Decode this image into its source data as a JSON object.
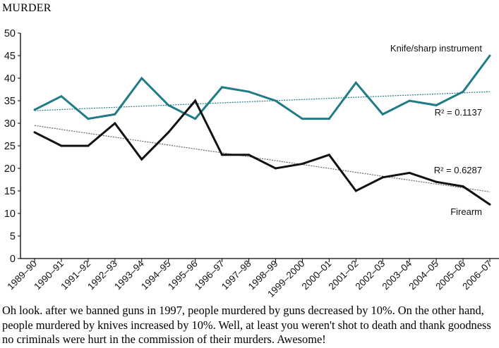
{
  "title": "MURDER",
  "caption": "Oh look. after we banned guns in 1997, people murdered by guns decreased by 10%. On the other hand, people murdered by knives increased by 10%. Well, at least you weren't shot to death and thank goodness no criminals were hurt in the commission of their murders. Awesome!",
  "colors": {
    "knife": "#1f7b87",
    "firearm": "#111111",
    "trend": "#666666"
  },
  "chart_data": {
    "type": "line",
    "title": "MURDER",
    "xlabel": "",
    "ylabel": "",
    "ylim": [
      0,
      50
    ],
    "yticks": [
      0,
      5,
      10,
      15,
      20,
      25,
      30,
      35,
      40,
      45,
      50
    ],
    "grid": false,
    "categories": [
      "1989–90",
      "1990–91",
      "1991–92",
      "1992–93",
      "1993–94",
      "1994–95",
      "1995–96",
      "1996–97",
      "1997–98",
      "1998–99",
      "1999–2000",
      "2000–01",
      "2001–02",
      "2002–03",
      "2003–04",
      "2004–05",
      "2005–06",
      "2006–07"
    ],
    "series": [
      {
        "name": "Knife/sharp instrument",
        "values": [
          33,
          36,
          31,
          32,
          40,
          34,
          31,
          38,
          37,
          35,
          31,
          31,
          39,
          32,
          35,
          34,
          37,
          45
        ],
        "trendline": {
          "start": 32.8,
          "end": 37.0,
          "r2_label": "R² = 0.1137"
        }
      },
      {
        "name": "Firearm",
        "values": [
          28,
          25,
          25,
          30,
          22,
          28,
          35,
          23,
          23,
          20,
          21,
          23,
          15,
          18,
          19,
          17,
          16,
          12
        ],
        "trendline": {
          "start": 29.5,
          "end": 14.8,
          "r2_label": "R² = 0.6287"
        }
      }
    ]
  }
}
